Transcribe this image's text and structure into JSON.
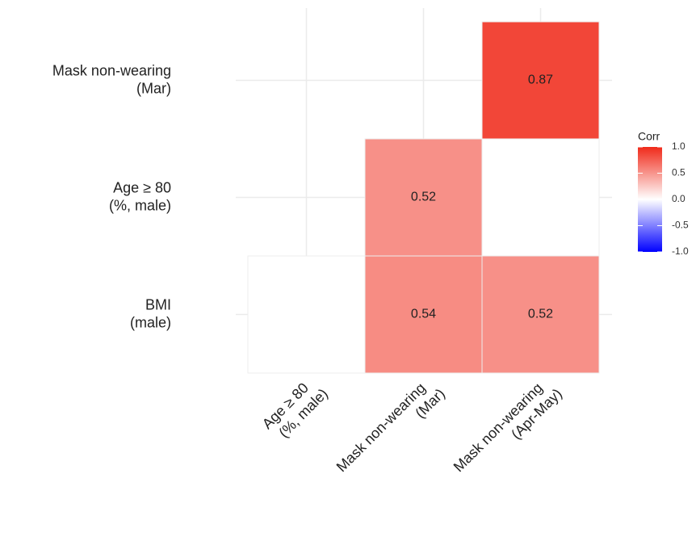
{
  "chart_data": {
    "type": "heatmap",
    "rows": [
      [
        "Mask non-wearing",
        "(Mar)"
      ],
      [
        "Age ≥ 80",
        "(%, male)"
      ],
      [
        "BMI",
        "(male)"
      ]
    ],
    "columns": [
      [
        "Age ≥ 80",
        "(%, male)"
      ],
      [
        "Mask non-wearing",
        "(Mar)"
      ],
      [
        "Mask non-wearing",
        "(Apr-May)"
      ]
    ],
    "cells": [
      {
        "row": 0,
        "col": 2,
        "value": 0.87
      },
      {
        "row": 1,
        "col": 1,
        "value": 0.52
      },
      {
        "row": 1,
        "col": 2,
        "value": null
      },
      {
        "row": 2,
        "col": 0,
        "value": null
      },
      {
        "row": 2,
        "col": 1,
        "value": 0.54
      },
      {
        "row": 2,
        "col": 2,
        "value": 0.52
      }
    ],
    "legend_title": "Corr",
    "colorscale": {
      "low": "#0000FF",
      "mid": "#FFFFFF",
      "high": "#F02A1A"
    },
    "clim": [
      -1,
      1
    ],
    "cticks": [
      {
        "value": 1,
        "label": "1.0"
      },
      {
        "value": 0.5,
        "label": "0.5"
      },
      {
        "value": 0,
        "label": "0.0"
      },
      {
        "value": -0.5,
        "label": "-0.5"
      },
      {
        "value": -1,
        "label": "-1.0"
      }
    ],
    "grid": true
  }
}
